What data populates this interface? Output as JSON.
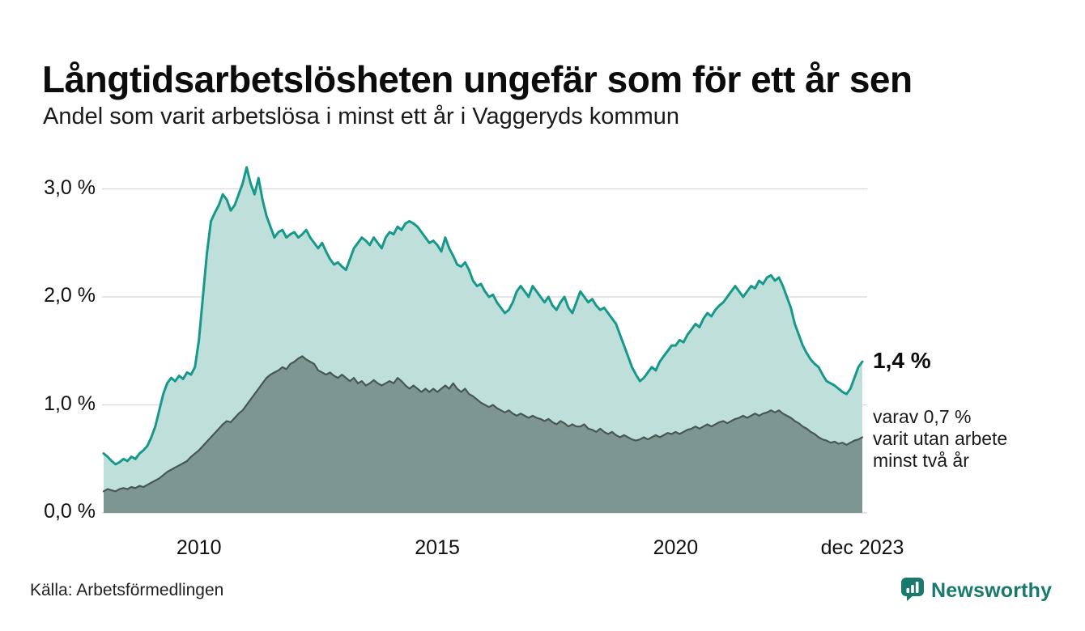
{
  "header": {
    "title": "Långtidsarbetslösheten ungefär som för ett år sen",
    "subtitle": "Andel som varit arbetslösa i minst ett år i Vaggeryds kommun"
  },
  "chart_data": {
    "type": "area",
    "title": "Långtidsarbetslösheten ungefär som för ett år sen",
    "subtitle": "Andel som varit arbetslösa i minst ett år i Vaggeryds kommun",
    "x_start": "2008-01",
    "x_end": "2023-12",
    "frequency": "monthly",
    "ylim": [
      0,
      3.25
    ],
    "grid": true,
    "unit": "%",
    "yticks": [
      {
        "label": "0,0 %",
        "value": 0
      },
      {
        "label": "1,0 %",
        "value": 1
      },
      {
        "label": "2,0 %",
        "value": 2
      },
      {
        "label": "3,0 %",
        "value": 3
      }
    ],
    "xticks": [
      {
        "label": "2010",
        "month_index": 24
      },
      {
        "label": "2015",
        "month_index": 84
      },
      {
        "label": "2020",
        "month_index": 144
      },
      {
        "label": "dec 2023",
        "month_index": 191
      }
    ],
    "series": [
      {
        "name": "Andel som varit arbetslösa i minst ett år",
        "color": "#16988a",
        "fill": "#bfe0da",
        "latest_value": 1.4,
        "values": [
          0.55,
          0.52,
          0.48,
          0.45,
          0.47,
          0.5,
          0.48,
          0.52,
          0.5,
          0.55,
          0.58,
          0.62,
          0.7,
          0.8,
          0.95,
          1.1,
          1.2,
          1.25,
          1.22,
          1.27,
          1.24,
          1.3,
          1.28,
          1.35,
          1.6,
          2.0,
          2.4,
          2.7,
          2.78,
          2.85,
          2.95,
          2.9,
          2.8,
          2.85,
          2.95,
          3.05,
          3.2,
          3.05,
          2.95,
          3.1,
          2.9,
          2.75,
          2.65,
          2.55,
          2.6,
          2.62,
          2.55,
          2.58,
          2.6,
          2.55,
          2.58,
          2.62,
          2.55,
          2.5,
          2.45,
          2.5,
          2.42,
          2.35,
          2.3,
          2.32,
          2.28,
          2.25,
          2.35,
          2.45,
          2.5,
          2.55,
          2.52,
          2.48,
          2.55,
          2.5,
          2.45,
          2.55,
          2.6,
          2.58,
          2.65,
          2.62,
          2.68,
          2.7,
          2.68,
          2.65,
          2.6,
          2.55,
          2.5,
          2.52,
          2.48,
          2.42,
          2.55,
          2.45,
          2.38,
          2.3,
          2.28,
          2.32,
          2.25,
          2.15,
          2.1,
          2.12,
          2.05,
          2.0,
          2.02,
          1.95,
          1.9,
          1.85,
          1.88,
          1.95,
          2.05,
          2.1,
          2.05,
          2.0,
          2.1,
          2.05,
          2.0,
          1.95,
          2.0,
          1.92,
          1.88,
          1.95,
          2.0,
          1.9,
          1.85,
          1.95,
          2.05,
          2.0,
          1.95,
          1.98,
          1.92,
          1.88,
          1.9,
          1.85,
          1.8,
          1.75,
          1.65,
          1.55,
          1.45,
          1.35,
          1.28,
          1.22,
          1.25,
          1.3,
          1.35,
          1.32,
          1.4,
          1.45,
          1.5,
          1.55,
          1.55,
          1.6,
          1.58,
          1.65,
          1.7,
          1.75,
          1.72,
          1.8,
          1.85,
          1.82,
          1.88,
          1.92,
          1.95,
          2.0,
          2.05,
          2.1,
          2.05,
          2.0,
          2.05,
          2.1,
          2.08,
          2.15,
          2.12,
          2.18,
          2.2,
          2.15,
          2.18,
          2.1,
          2.0,
          1.9,
          1.75,
          1.65,
          1.55,
          1.48,
          1.42,
          1.38,
          1.35,
          1.28,
          1.22,
          1.2,
          1.18,
          1.15,
          1.12,
          1.1,
          1.15,
          1.25,
          1.35,
          1.4
        ]
      },
      {
        "name": "varav utan arbete minst två år",
        "color": "#475854",
        "fill": "#7e9691",
        "latest_value": 0.7,
        "values": [
          0.2,
          0.22,
          0.21,
          0.2,
          0.22,
          0.23,
          0.22,
          0.24,
          0.23,
          0.25,
          0.24,
          0.26,
          0.28,
          0.3,
          0.32,
          0.35,
          0.38,
          0.4,
          0.42,
          0.44,
          0.46,
          0.48,
          0.52,
          0.55,
          0.58,
          0.62,
          0.66,
          0.7,
          0.74,
          0.78,
          0.82,
          0.85,
          0.84,
          0.88,
          0.92,
          0.95,
          1.0,
          1.05,
          1.1,
          1.15,
          1.2,
          1.25,
          1.28,
          1.3,
          1.32,
          1.35,
          1.33,
          1.38,
          1.4,
          1.43,
          1.45,
          1.42,
          1.4,
          1.38,
          1.32,
          1.3,
          1.28,
          1.3,
          1.27,
          1.25,
          1.28,
          1.25,
          1.22,
          1.25,
          1.2,
          1.22,
          1.18,
          1.2,
          1.23,
          1.2,
          1.18,
          1.2,
          1.22,
          1.2,
          1.25,
          1.22,
          1.18,
          1.15,
          1.18,
          1.15,
          1.12,
          1.15,
          1.12,
          1.15,
          1.12,
          1.15,
          1.18,
          1.15,
          1.2,
          1.15,
          1.12,
          1.15,
          1.1,
          1.08,
          1.05,
          1.02,
          1.0,
          0.98,
          1.0,
          0.97,
          0.95,
          0.93,
          0.95,
          0.92,
          0.9,
          0.92,
          0.9,
          0.88,
          0.9,
          0.88,
          0.87,
          0.85,
          0.87,
          0.84,
          0.82,
          0.85,
          0.83,
          0.8,
          0.82,
          0.8,
          0.8,
          0.82,
          0.78,
          0.77,
          0.75,
          0.78,
          0.75,
          0.73,
          0.75,
          0.72,
          0.7,
          0.72,
          0.7,
          0.68,
          0.67,
          0.68,
          0.7,
          0.68,
          0.7,
          0.72,
          0.7,
          0.72,
          0.74,
          0.73,
          0.75,
          0.73,
          0.75,
          0.77,
          0.78,
          0.8,
          0.78,
          0.8,
          0.82,
          0.8,
          0.82,
          0.84,
          0.85,
          0.83,
          0.85,
          0.87,
          0.88,
          0.9,
          0.88,
          0.9,
          0.92,
          0.9,
          0.92,
          0.93,
          0.95,
          0.93,
          0.95,
          0.92,
          0.9,
          0.88,
          0.85,
          0.83,
          0.8,
          0.78,
          0.75,
          0.73,
          0.7,
          0.68,
          0.67,
          0.65,
          0.66,
          0.64,
          0.65,
          0.63,
          0.65,
          0.67,
          0.68,
          0.7
        ]
      }
    ],
    "annotations": {
      "latest_value_label": "1,4 %",
      "detail": "varav 0,7 %\nvarit utan arbete\nminst två år"
    },
    "colors": {
      "grid": "#d8d8d8",
      "accent_teal": "#16988a"
    }
  },
  "footer": {
    "source": "Källa: Arbetsförmedlingen",
    "brand": "Newsworthy",
    "brand_color": "#177a6d"
  }
}
